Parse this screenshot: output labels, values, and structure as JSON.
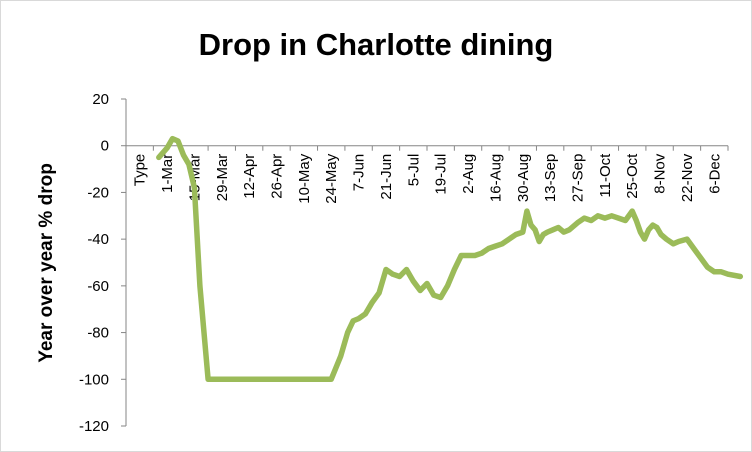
{
  "chart_data": {
    "type": "line",
    "title": "Drop in Charlotte dining",
    "xlabel": "",
    "ylabel": "Year over year % drop",
    "ylim": [
      -120,
      20
    ],
    "yticks": [
      20,
      0,
      -20,
      -40,
      -60,
      -80,
      -100,
      -120
    ],
    "categories": [
      "Type",
      "1-Mar",
      "15-Mar",
      "29-Mar",
      "12-Apr",
      "26-Apr",
      "10-May",
      "24-May",
      "7-Jun",
      "21-Jun",
      "5-Jul",
      "19-Jul",
      "2-Aug",
      "16-Aug",
      "30-Aug",
      "13-Sep",
      "27-Sep",
      "11-Oct",
      "25-Oct",
      "8-Nov",
      "22-Nov",
      "6-Dec"
    ],
    "grid": false,
    "legend": "none",
    "series": [
      {
        "color": "#9bbb59",
        "x": [
          0.7,
          1.0,
          1.2,
          1.4,
          1.6,
          1.8,
          2.0,
          2.2,
          2.5,
          2.7,
          2.8,
          2.9,
          3.0,
          3.05,
          4,
          5,
          6,
          7,
          7.35,
          7.6,
          7.8,
          8.0,
          8.25,
          8.5,
          8.75,
          9.0,
          9.25,
          9.5,
          9.75,
          10.0,
          10.25,
          10.5,
          10.75,
          11.0,
          11.25,
          11.5,
          11.75,
          12.0,
          12.25,
          12.5,
          12.75,
          13.0,
          13.25,
          13.5,
          13.75,
          14.0,
          14.15,
          14.3,
          14.45,
          14.6,
          14.75,
          14.9,
          15.1,
          15.3,
          15.5,
          15.7,
          16.0,
          16.25,
          16.5,
          16.75,
          17.0,
          17.25,
          17.5,
          17.75,
          18.0,
          18.15,
          18.3,
          18.45,
          18.6,
          18.75,
          18.9,
          19.05,
          19.25,
          19.5,
          19.7,
          20.0,
          20.25,
          20.5,
          20.75,
          21.0,
          21.25,
          21.5,
          21.95
        ],
        "y": [
          -5,
          -1,
          3,
          2,
          -4,
          -8,
          -18,
          -60,
          -100,
          -100,
          -100,
          -100,
          -100,
          -100,
          -100,
          -100,
          -100,
          -100,
          -90,
          -80,
          -75,
          -74,
          -72,
          -67,
          -63,
          -53,
          -55,
          -56,
          -53,
          -58,
          -62,
          -59,
          -64,
          -65,
          -60,
          -53,
          -47,
          -47,
          -47,
          -46,
          -44,
          -43,
          -42,
          -40,
          -38,
          -37,
          -28,
          -34,
          -36,
          -41,
          -38,
          -37,
          -36,
          -35,
          -37,
          -36,
          -33,
          -31,
          -32,
          -30,
          -31,
          -30,
          -31,
          -32,
          -28,
          -32,
          -37,
          -40,
          -36,
          -34,
          -35,
          -38,
          -40,
          -42,
          -41,
          -40,
          -44,
          -48,
          -52,
          -54,
          -54,
          -55,
          -56
        ]
      }
    ]
  }
}
